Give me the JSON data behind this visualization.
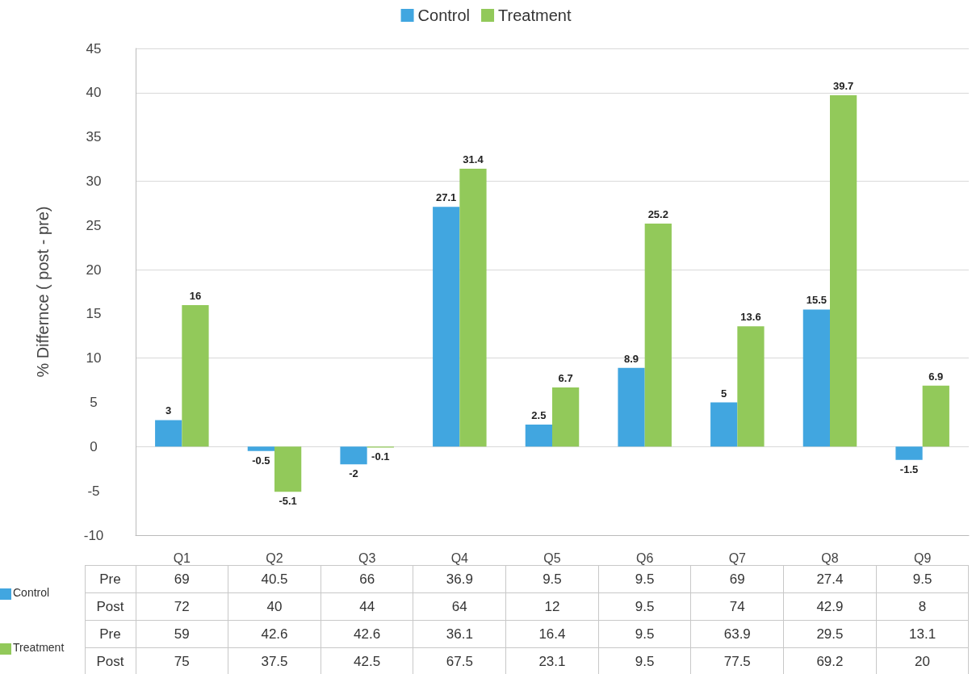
{
  "chart_data": [
    {
      "type": "bar",
      "ylabel": "% Differnce ( post - pre)",
      "categories": [
        "Q1",
        "Q2",
        "Q3",
        "Q4",
        "Q5",
        "Q6",
        "Q7",
        "Q8",
        "Q9"
      ],
      "series": [
        {
          "name": "Control",
          "color": "#41a6e0",
          "values": [
            3,
            -0.5,
            -2,
            27.1,
            2.5,
            8.9,
            5,
            15.5,
            -1.5
          ]
        },
        {
          "name": "Treatment",
          "color": "#92c95a",
          "values": [
            16,
            -5.1,
            -0.1,
            31.4,
            6.7,
            25.2,
            13.6,
            39.7,
            6.9
          ]
        }
      ],
      "ylim": [
        -10,
        45
      ],
      "yticks": [
        -10,
        -5,
        0,
        5,
        10,
        15,
        20,
        25,
        30,
        35,
        40,
        45
      ],
      "grid": "y",
      "legend": "top",
      "data_labels": true
    },
    {
      "type": "other",
      "annotations": [
        "Control",
        "Treatment"
      ],
      "colors": [
        "#41a6e0",
        "#92c95a"
      ],
      "y_categories": [
        "Pre",
        "Post",
        "Pre",
        "Post"
      ],
      "cell_labels": [
        [
          "69",
          "40.5",
          "66",
          "36.9",
          "9.5",
          "9.5",
          "69",
          "27.4",
          "9.5"
        ],
        [
          "72",
          "40",
          "44",
          "64",
          "12",
          "9.5",
          "74",
          "42.9",
          "8"
        ],
        [
          "59",
          "42.6",
          "42.6",
          "36.1",
          "16.4",
          "9.5",
          "63.9",
          "29.5",
          "13.1"
        ],
        [
          "75",
          "37.5",
          "42.5",
          "67.5",
          "23.1",
          "9.5",
          "77.5",
          "69.2",
          "20"
        ]
      ]
    }
  ]
}
